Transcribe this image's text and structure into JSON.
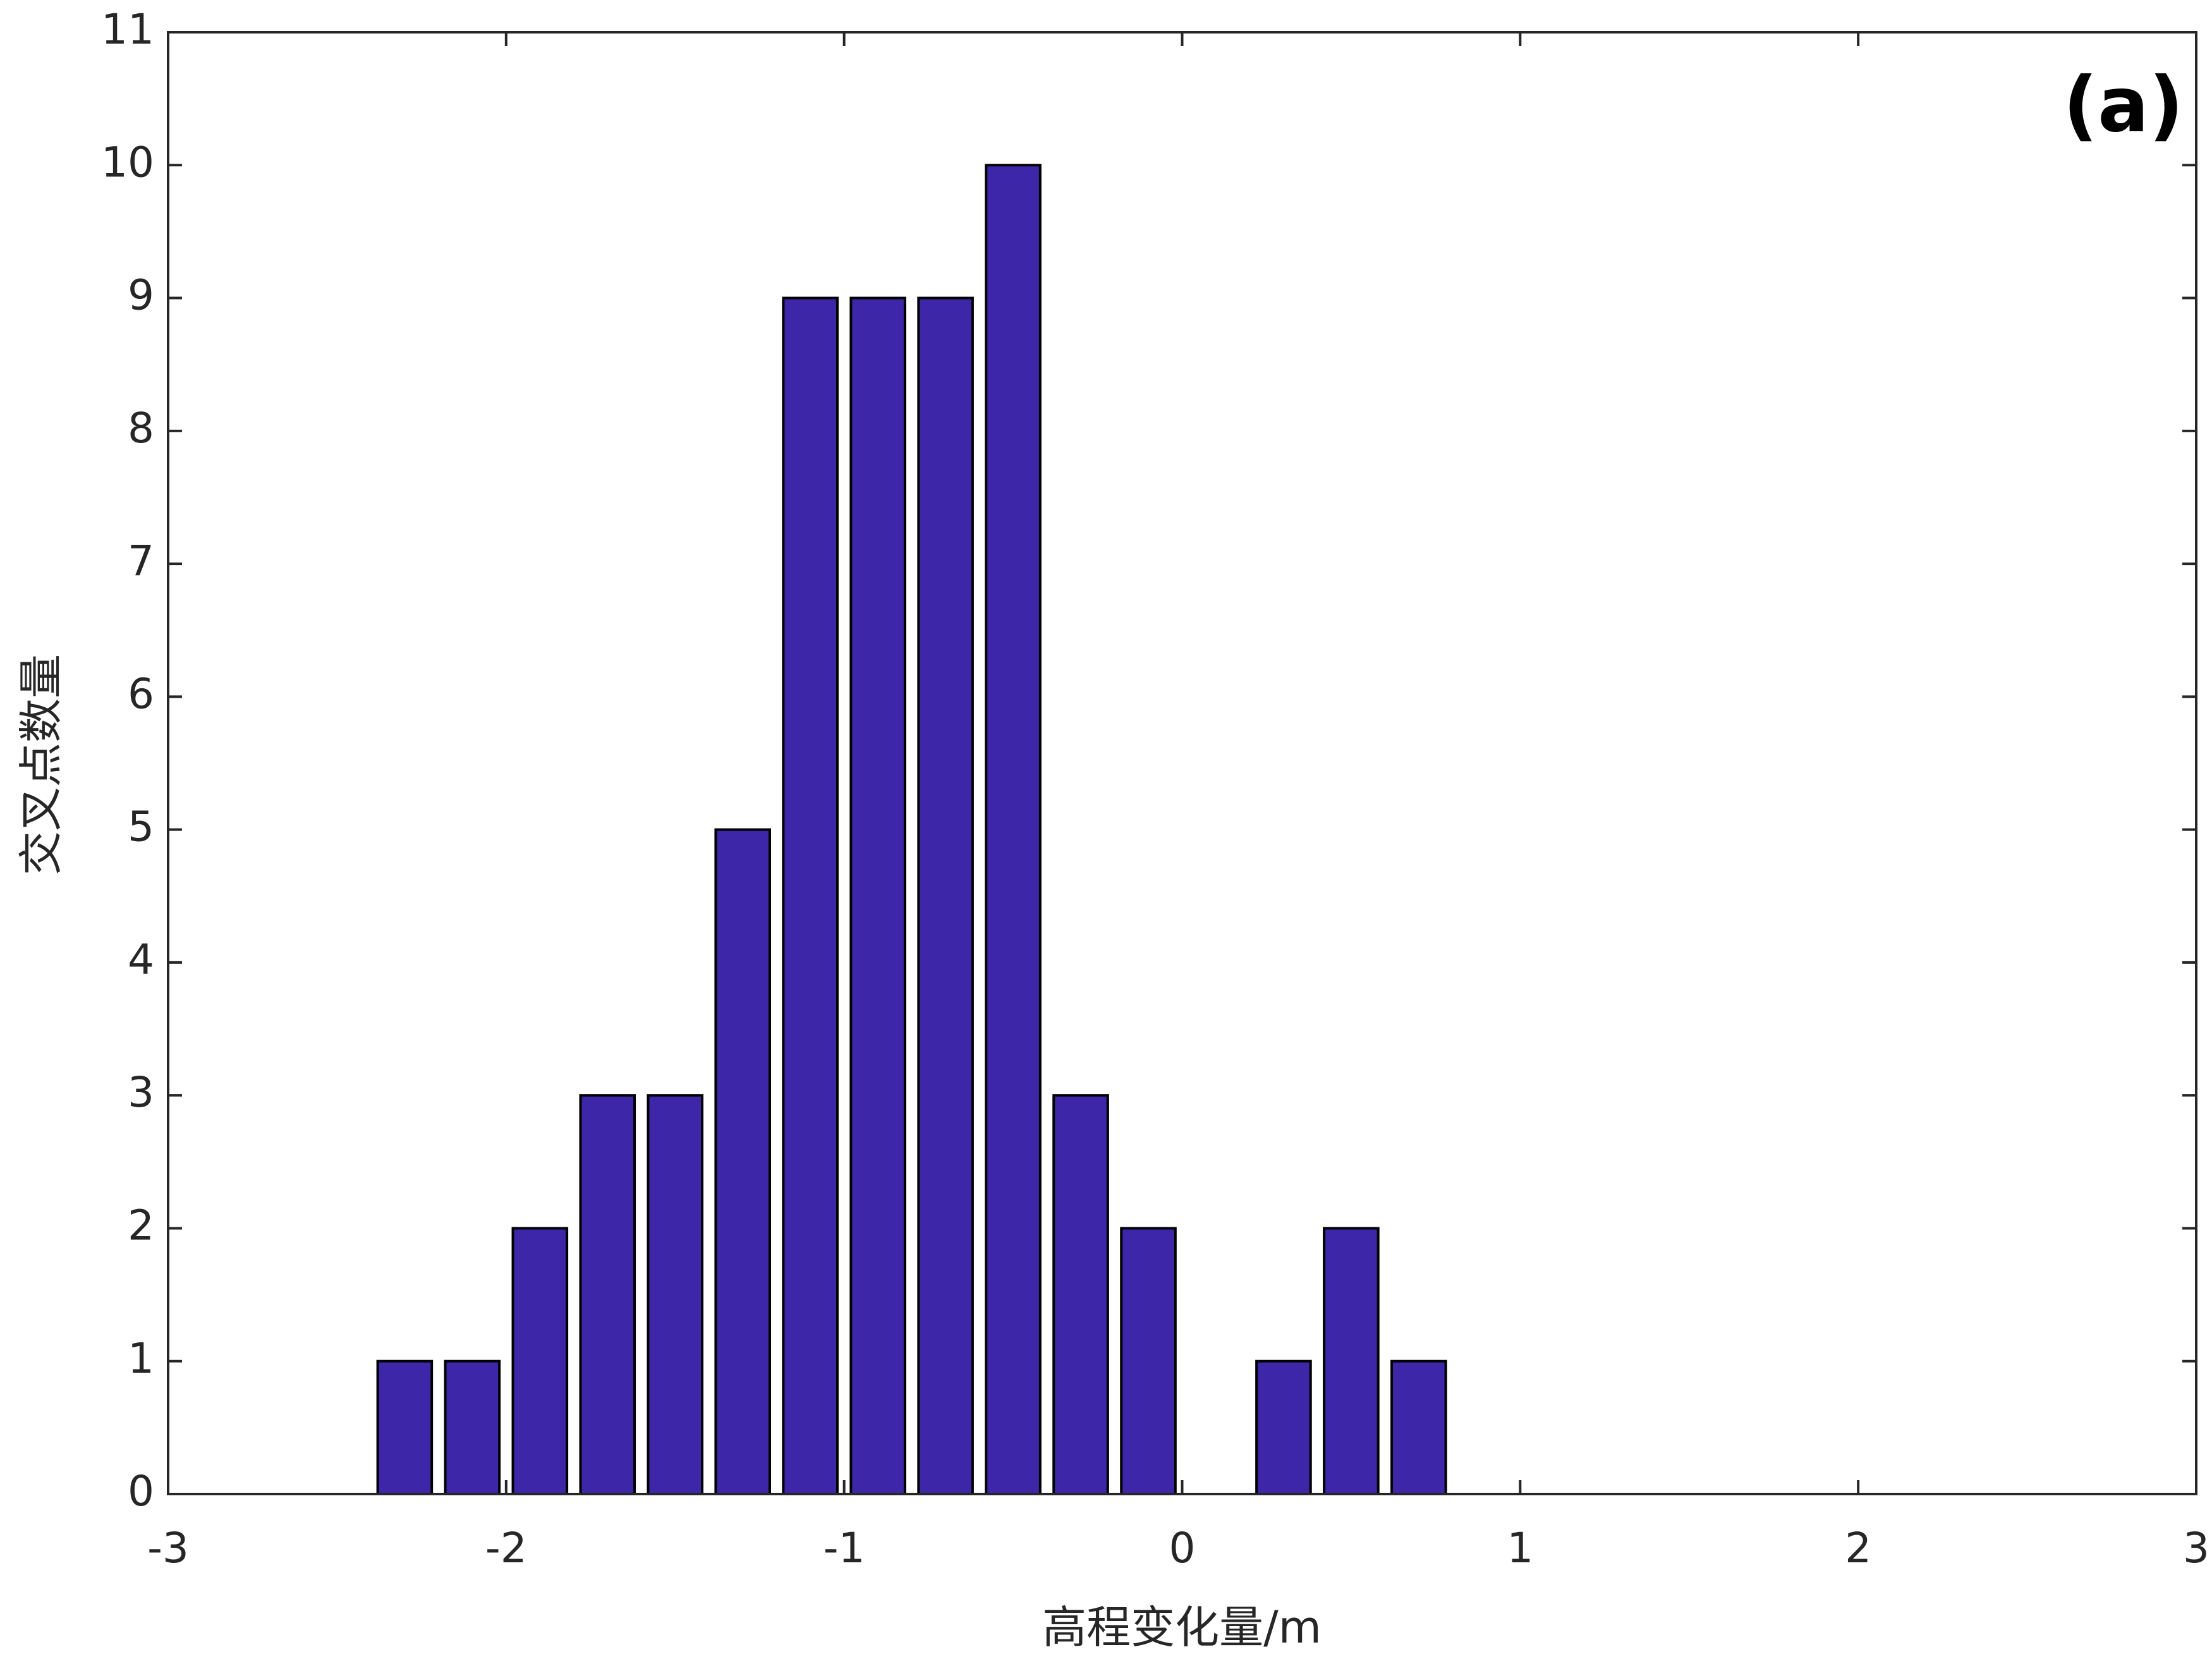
{
  "chart_data": {
    "type": "bar",
    "x": [
      -2.3,
      -2.1,
      -1.9,
      -1.7,
      -1.5,
      -1.3,
      -1.1,
      -0.9,
      -0.7,
      -0.5,
      -0.3,
      -0.1,
      0.3,
      0.5,
      0.7
    ],
    "values": [
      1,
      1,
      2,
      3,
      3,
      5,
      9,
      9,
      9,
      10,
      3,
      2,
      1,
      2,
      1
    ],
    "color": "#3d27a8",
    "xlim": [
      -3,
      3
    ],
    "xticks": [
      -3,
      -2,
      -1,
      0,
      1,
      2,
      3
    ],
    "ylim": [
      0,
      11
    ],
    "yticks": [
      0,
      1,
      2,
      3,
      4,
      5,
      6,
      7,
      8,
      9,
      10,
      11
    ],
    "xlabel": "高程变化量/m",
    "ylabel": "交叉点数量",
    "annotation": "(a)",
    "grid": false
  }
}
